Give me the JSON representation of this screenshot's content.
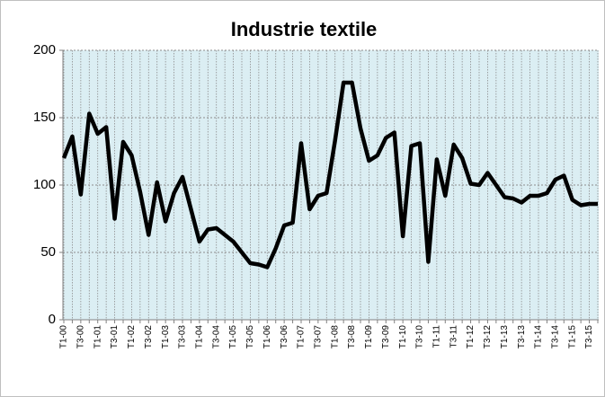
{
  "chart_data": {
    "type": "line",
    "title": "Industrie textile",
    "categories": [
      "T1-00",
      null,
      "T3-00",
      null,
      "T1-01",
      null,
      "T3-01",
      null,
      "T1-02",
      null,
      "T3-02",
      null,
      "T1-03",
      null,
      "T3-03",
      null,
      "T1-04",
      null,
      "T3-04",
      null,
      "T1-05",
      null,
      "T3-05",
      null,
      "T1-06",
      null,
      "T3-06",
      null,
      "T1-07",
      null,
      "T3-07",
      null,
      "T1-08",
      null,
      "T3-08",
      null,
      "T1-09",
      null,
      "T3-09",
      null,
      "T1-10",
      null,
      "T3-10",
      null,
      "T1-11",
      null,
      "T3-11",
      null,
      "T1-12",
      null,
      "T3-12",
      null,
      "T1-13",
      null,
      "T3-13",
      null,
      "T1-14",
      null,
      "T3-14",
      null,
      "T1-15",
      null,
      "T3-15",
      null
    ],
    "series": [
      {
        "color": "#000000",
        "values": [
          120,
          136,
          93,
          153,
          138,
          143,
          75,
          132,
          122,
          95,
          63,
          102,
          73,
          94,
          106,
          82,
          58,
          67,
          68,
          63,
          58,
          50,
          42,
          41,
          39,
          53,
          70,
          72,
          131,
          82,
          92,
          94,
          133,
          176,
          176,
          142,
          118,
          122,
          135,
          139,
          62,
          129,
          131,
          43,
          119,
          92,
          130,
          120,
          101,
          100,
          109,
          100,
          91,
          90,
          87,
          92,
          92,
          94,
          104,
          107,
          89,
          85,
          86,
          86
        ]
      }
    ],
    "ylim": [
      0,
      200
    ],
    "yticks": [
      0,
      50,
      100,
      150,
      200
    ],
    "grid": true,
    "plot_background": "#dbeef3"
  }
}
